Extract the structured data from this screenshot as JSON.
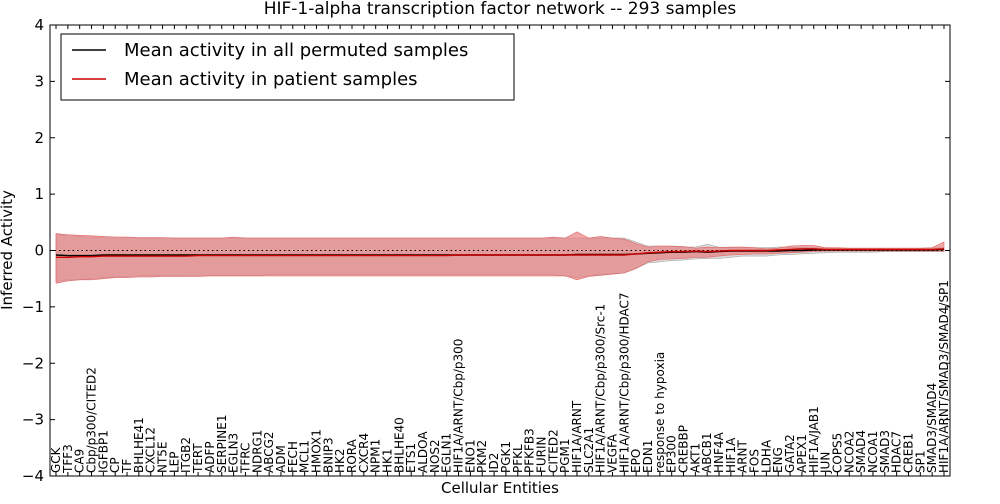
{
  "chart_data": {
    "type": "line",
    "title": "HIF-1-alpha transcription factor network -- 293 samples",
    "xlabel": "Cellular Entities",
    "ylabel": "Inferred Activity",
    "ylim": [
      -4,
      4
    ],
    "yticks": [
      "−4",
      "−3",
      "−2",
      "−1",
      "0",
      "1",
      "2",
      "3",
      "4"
    ],
    "grid": false,
    "legend_position": "top-left",
    "zero_line": 0,
    "categories": [
      "GCK",
      "TFF3",
      "CA9",
      "Cbp/p300/CITED2",
      "IGFBP1",
      "CP",
      "TF",
      "BHLHE41",
      "CXCL12",
      "NT5E",
      "LEP",
      "ITGB2",
      "TERT",
      "ADFP",
      "SERPINE1",
      "EGLN3",
      "TFRC",
      "NDRG1",
      "ABCG2",
      "ADM",
      "FECH",
      "MCL1",
      "HMOX1",
      "BNIP3",
      "HK2",
      "RORA",
      "CXCR4",
      "NPM1",
      "HK1",
      "BHLHE40",
      "ETS1",
      "ALDOA",
      "NOS2",
      "EGLN1",
      "HIF1A/ARNT/Cbp/p300",
      "ENO1",
      "PKM2",
      "ID2",
      "PGK1",
      "PFKL",
      "PFKFB3",
      "FURIN",
      "CITED2",
      "PGM1",
      "HIF1A/ARNT",
      "SLC2A1",
      "HIF1A/ARNT/Cbp/p300/Src-1",
      "VEGFA",
      "HIF1A/ARNT/Cbp/p300/HDAC7",
      "EPO",
      "EDN1",
      "response to hypoxia",
      "EP300",
      "CREBBP",
      "AKT1",
      "ABCB1",
      "HNF4A",
      "HIF1A",
      "ARNT",
      "FOS",
      "LDHA",
      "ENG",
      "GATA2",
      "APEX1",
      "HIF1A/JAB1",
      "JUN",
      "COPS5",
      "NCOA2",
      "SMAD4",
      "NCOA1",
      "SMAD3",
      "HDAC7",
      "CREB1",
      "SP1",
      "SMAD3/SMAD4",
      "HIF1A/ARNT/SMAD3/SMAD4/SP1"
    ],
    "series": [
      {
        "name": "Mean activity in all permuted samples",
        "color": "#000000",
        "values": [
          -0.08,
          -0.09,
          -0.09,
          -0.09,
          -0.08,
          -0.08,
          -0.08,
          -0.08,
          -0.08,
          -0.08,
          -0.08,
          -0.08,
          -0.08,
          -0.08,
          -0.08,
          -0.08,
          -0.08,
          -0.08,
          -0.08,
          -0.08,
          -0.08,
          -0.08,
          -0.08,
          -0.08,
          -0.08,
          -0.08,
          -0.08,
          -0.08,
          -0.08,
          -0.08,
          -0.08,
          -0.08,
          -0.08,
          -0.08,
          -0.08,
          -0.08,
          -0.08,
          -0.08,
          -0.08,
          -0.08,
          -0.08,
          -0.08,
          -0.08,
          -0.08,
          -0.07,
          -0.07,
          -0.07,
          -0.07,
          -0.07,
          -0.06,
          -0.05,
          -0.04,
          -0.03,
          -0.03,
          -0.02,
          -0.03,
          -0.02,
          -0.01,
          -0.01,
          -0.01,
          -0.01,
          -0.01,
          0.0,
          0.0,
          0.01,
          0.01,
          0.01,
          0.01,
          0.01,
          0.01,
          0.01,
          0.01,
          0.01,
          0.01,
          0.01,
          0.02
        ],
        "lower": [
          -0.55,
          -0.52,
          -0.52,
          -0.5,
          -0.48,
          -0.47,
          -0.46,
          -0.45,
          -0.45,
          -0.45,
          -0.45,
          -0.44,
          -0.44,
          -0.44,
          -0.44,
          -0.44,
          -0.44,
          -0.44,
          -0.43,
          -0.43,
          -0.43,
          -0.43,
          -0.43,
          -0.43,
          -0.43,
          -0.43,
          -0.43,
          -0.43,
          -0.43,
          -0.43,
          -0.43,
          -0.43,
          -0.43,
          -0.43,
          -0.43,
          -0.43,
          -0.43,
          -0.43,
          -0.43,
          -0.43,
          -0.43,
          -0.43,
          -0.43,
          -0.45,
          -0.48,
          -0.45,
          -0.43,
          -0.41,
          -0.4,
          -0.32,
          -0.22,
          -0.2,
          -0.18,
          -0.17,
          -0.15,
          -0.14,
          -0.14,
          -0.12,
          -0.1,
          -0.1,
          -0.1,
          -0.08,
          -0.07,
          -0.06,
          -0.05,
          -0.04,
          -0.03,
          -0.03,
          -0.03,
          -0.03,
          -0.02,
          -0.02,
          -0.02,
          -0.02,
          -0.02,
          -0.02
        ],
        "upper": [
          0.29,
          0.26,
          0.25,
          0.24,
          0.23,
          0.23,
          0.23,
          0.22,
          0.22,
          0.22,
          0.22,
          0.22,
          0.22,
          0.22,
          0.22,
          0.22,
          0.22,
          0.22,
          0.22,
          0.22,
          0.22,
          0.22,
          0.22,
          0.22,
          0.22,
          0.22,
          0.22,
          0.22,
          0.22,
          0.22,
          0.22,
          0.22,
          0.22,
          0.22,
          0.22,
          0.22,
          0.22,
          0.22,
          0.22,
          0.22,
          0.22,
          0.22,
          0.22,
          0.22,
          0.22,
          0.22,
          0.22,
          0.22,
          0.22,
          0.15,
          0.08,
          0.08,
          0.07,
          0.06,
          0.06,
          0.11,
          0.06,
          0.05,
          0.05,
          0.05,
          0.05,
          0.06,
          0.06,
          0.05,
          0.05,
          0.04,
          0.04,
          0.04,
          0.04,
          0.04,
          0.04,
          0.04,
          0.04,
          0.04,
          0.04,
          0.05
        ]
      },
      {
        "name": "Mean activity in patient samples",
        "color": "#cc0000",
        "values": [
          -0.12,
          -0.12,
          -0.11,
          -0.11,
          -0.1,
          -0.1,
          -0.1,
          -0.1,
          -0.1,
          -0.1,
          -0.1,
          -0.1,
          -0.09,
          -0.09,
          -0.09,
          -0.09,
          -0.09,
          -0.09,
          -0.09,
          -0.09,
          -0.09,
          -0.09,
          -0.09,
          -0.09,
          -0.09,
          -0.09,
          -0.09,
          -0.09,
          -0.09,
          -0.09,
          -0.09,
          -0.09,
          -0.09,
          -0.09,
          -0.08,
          -0.08,
          -0.08,
          -0.08,
          -0.08,
          -0.08,
          -0.08,
          -0.08,
          -0.08,
          -0.08,
          -0.08,
          -0.08,
          -0.08,
          -0.08,
          -0.08,
          -0.06,
          -0.04,
          -0.03,
          -0.02,
          -0.02,
          -0.01,
          -0.02,
          -0.01,
          0.0,
          0.0,
          0.0,
          0.0,
          0.01,
          0.02,
          0.03,
          0.03,
          0.02,
          0.02,
          0.02,
          0.02,
          0.02,
          0.02,
          0.02,
          0.02,
          0.02,
          0.02,
          0.03
        ],
        "lower": [
          -0.58,
          -0.54,
          -0.52,
          -0.52,
          -0.5,
          -0.48,
          -0.48,
          -0.47,
          -0.47,
          -0.46,
          -0.46,
          -0.46,
          -0.46,
          -0.45,
          -0.45,
          -0.45,
          -0.45,
          -0.45,
          -0.45,
          -0.45,
          -0.45,
          -0.45,
          -0.45,
          -0.45,
          -0.45,
          -0.45,
          -0.45,
          -0.45,
          -0.45,
          -0.45,
          -0.45,
          -0.45,
          -0.45,
          -0.45,
          -0.45,
          -0.45,
          -0.45,
          -0.45,
          -0.45,
          -0.45,
          -0.45,
          -0.45,
          -0.45,
          -0.45,
          -0.52,
          -0.46,
          -0.44,
          -0.42,
          -0.4,
          -0.32,
          -0.2,
          -0.16,
          -0.15,
          -0.14,
          -0.12,
          -0.12,
          -0.1,
          -0.08,
          -0.07,
          -0.06,
          -0.06,
          -0.05,
          -0.04,
          -0.03,
          -0.02,
          -0.01,
          -0.01,
          -0.01,
          -0.01,
          -0.01,
          -0.01,
          -0.01,
          -0.01,
          -0.01,
          -0.01,
          -0.01
        ],
        "upper": [
          0.3,
          0.28,
          0.27,
          0.26,
          0.25,
          0.24,
          0.24,
          0.23,
          0.23,
          0.23,
          0.22,
          0.22,
          0.22,
          0.22,
          0.22,
          0.24,
          0.22,
          0.22,
          0.22,
          0.22,
          0.22,
          0.22,
          0.22,
          0.22,
          0.22,
          0.22,
          0.22,
          0.22,
          0.22,
          0.22,
          0.22,
          0.22,
          0.22,
          0.22,
          0.22,
          0.22,
          0.22,
          0.22,
          0.22,
          0.22,
          0.22,
          0.22,
          0.24,
          0.22,
          0.33,
          0.22,
          0.25,
          0.22,
          0.2,
          0.12,
          0.06,
          0.08,
          0.08,
          0.07,
          0.04,
          0.06,
          0.05,
          0.06,
          0.06,
          0.05,
          0.03,
          0.04,
          0.08,
          0.09,
          0.09,
          0.05,
          0.05,
          0.04,
          0.04,
          0.04,
          0.04,
          0.04,
          0.04,
          0.04,
          0.05,
          0.15
        ]
      }
    ]
  }
}
